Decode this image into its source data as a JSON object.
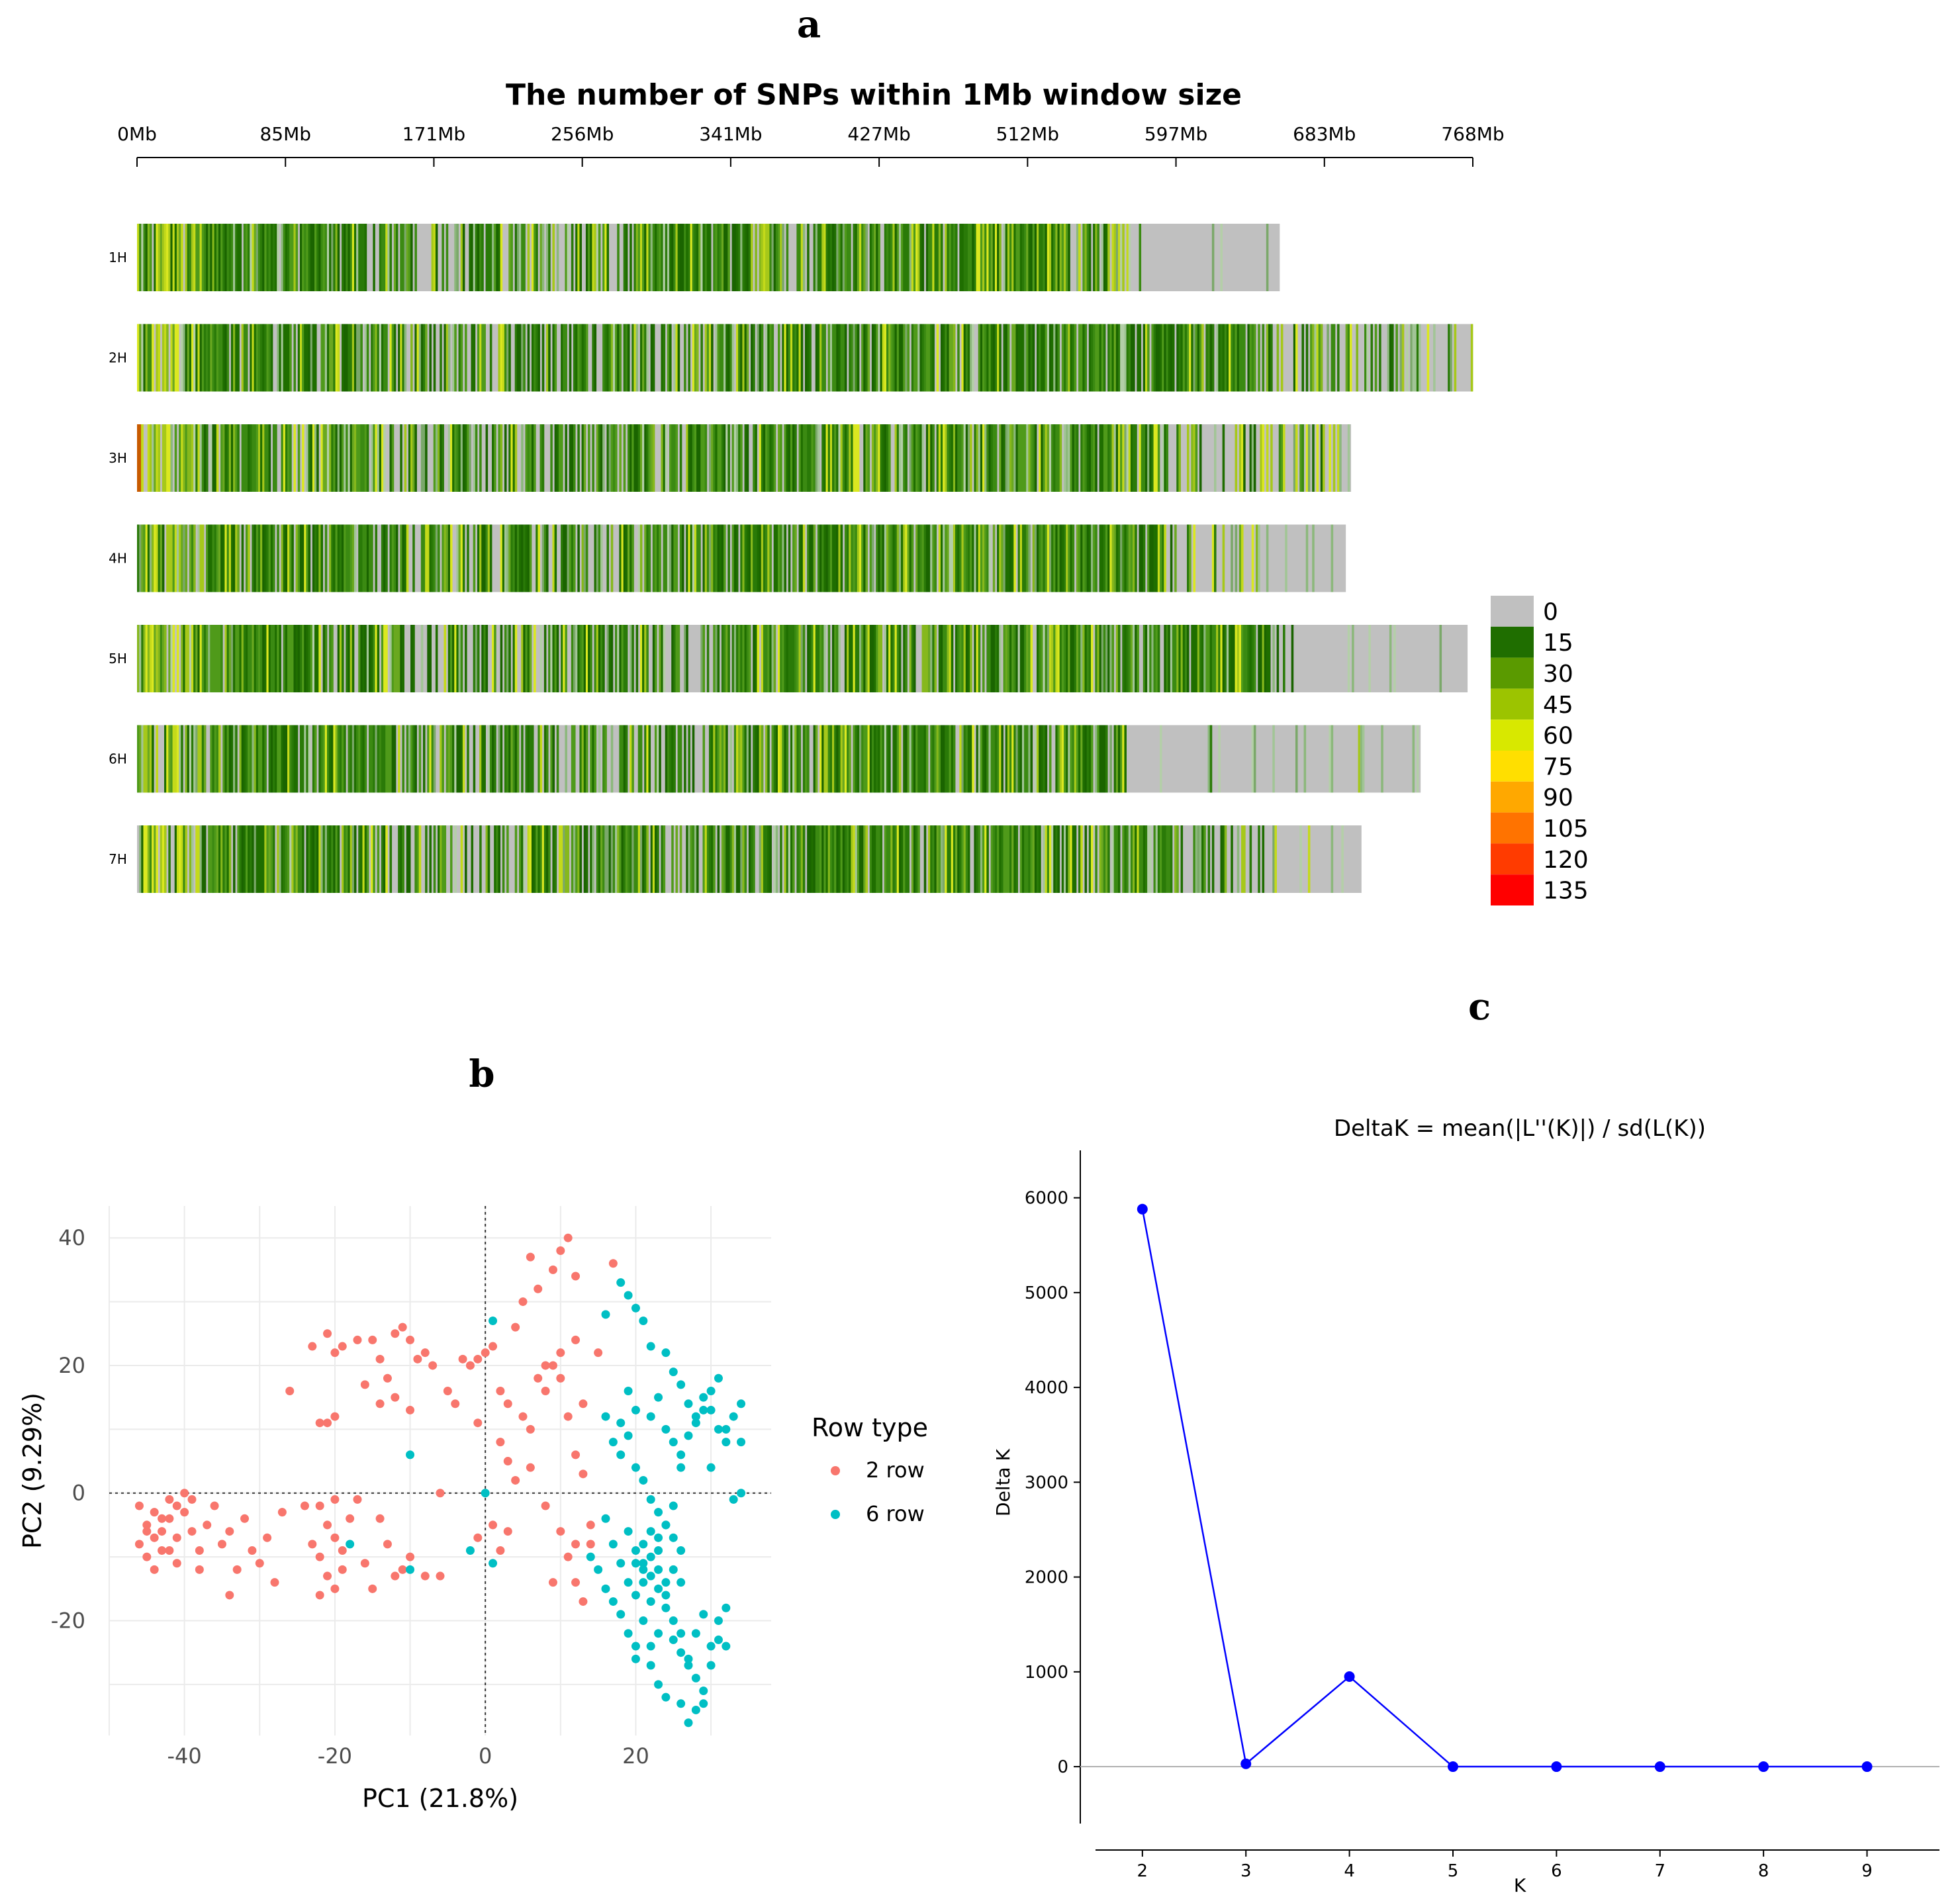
{
  "chart_data": [
    {
      "panel": "a",
      "type": "heatmap",
      "title": "The number of SNPs within 1Mb window size",
      "x_ticks": [
        "0Mb",
        "85Mb",
        "171Mb",
        "256Mb",
        "341Mb",
        "427Mb",
        "512Mb",
        "597Mb",
        "683Mb",
        "768Mb"
      ],
      "x_range": [
        0,
        768
      ],
      "chromosomes": [
        {
          "name": "1H",
          "length": 657
        },
        {
          "name": "2H",
          "length": 768
        },
        {
          "name": "3H",
          "length": 698
        },
        {
          "name": "4H",
          "length": 695
        },
        {
          "name": "5H",
          "length": 765
        },
        {
          "name": "6H",
          "length": 738
        },
        {
          "name": "7H",
          "length": 704
        }
      ],
      "legend": {
        "values": [
          0,
          15,
          30,
          45,
          60,
          75,
          90,
          105,
          120,
          135
        ],
        "labels": [
          "0",
          "15",
          "30",
          "45",
          "60",
          "75",
          "90",
          "105",
          "120",
          "135"
        ],
        "colors": [
          "#c0c0c0",
          "#1f6e00",
          "#5a9a00",
          "#9cc400",
          "#d8e800",
          "#ffdf00",
          "#ffa800",
          "#ff7300",
          "#ff3b00",
          "#ff0000"
        ]
      }
    },
    {
      "panel": "b",
      "type": "scatter",
      "xlabel": "PC1 (21.8%)",
      "ylabel": "PC2 (9.29%)",
      "xlim": [
        -50,
        38
      ],
      "ylim": [
        -38,
        45
      ],
      "x_ticks": [
        -40,
        -20,
        0,
        20
      ],
      "y_ticks": [
        40,
        20,
        0,
        -20
      ],
      "x_tick_labels": [
        "-40",
        "-20",
        "0",
        "20"
      ],
      "y_tick_labels": [
        "40",
        "20",
        "0",
        "-20"
      ],
      "legend_title": "Row type",
      "series": [
        {
          "name": "2 row",
          "color": "#f8766d",
          "points": [
            [
              -46,
              -8
            ],
            [
              -45,
              -5
            ],
            [
              -44,
              -3
            ],
            [
              -43,
              -6
            ],
            [
              -42,
              -4
            ],
            [
              -41,
              -7
            ],
            [
              -45,
              -10
            ],
            [
              -44,
              -12
            ],
            [
              -43,
              -9
            ],
            [
              -46,
              -2
            ],
            [
              -42,
              -1
            ],
            [
              -40,
              -3
            ],
            [
              -39,
              -6
            ],
            [
              -41,
              -11
            ],
            [
              -38,
              -9
            ],
            [
              -37,
              -5
            ],
            [
              -36,
              -2
            ],
            [
              -35,
              -8
            ],
            [
              -34,
              -6
            ],
            [
              -33,
              -12
            ],
            [
              -32,
              -4
            ],
            [
              -31,
              -9
            ],
            [
              -30,
              -11
            ],
            [
              -29,
              -7
            ],
            [
              -28,
              -14
            ],
            [
              -34,
              -16
            ],
            [
              -27,
              -3
            ],
            [
              -44,
              -7
            ],
            [
              -45,
              -6
            ],
            [
              -43,
              -4
            ],
            [
              -40,
              0
            ],
            [
              -39,
              -1
            ],
            [
              -41,
              -2
            ],
            [
              -42,
              -9
            ],
            [
              -38,
              -12
            ],
            [
              -22,
              -2
            ],
            [
              -21,
              -5
            ],
            [
              -20,
              -7
            ],
            [
              -22,
              -10
            ],
            [
              -21,
              -13
            ],
            [
              -20,
              -15
            ],
            [
              -19,
              -9
            ],
            [
              -18,
              -4
            ],
            [
              -22,
              -16
            ],
            [
              -20,
              -1
            ],
            [
              -19,
              -12
            ],
            [
              -16,
              -11
            ],
            [
              -15,
              -15
            ],
            [
              -13,
              -8
            ],
            [
              -12,
              -13
            ],
            [
              -11,
              -12
            ],
            [
              -10,
              -10
            ],
            [
              -8,
              -13
            ],
            [
              -6,
              -13
            ],
            [
              -24,
              -2
            ],
            [
              -23,
              -8
            ],
            [
              -17,
              -1
            ],
            [
              -14,
              -4
            ],
            [
              -6,
              0
            ],
            [
              -23,
              23
            ],
            [
              -21,
              25
            ],
            [
              -20,
              22
            ],
            [
              -19,
              23
            ],
            [
              -17,
              24
            ],
            [
              -15,
              24
            ],
            [
              -14,
              21
            ],
            [
              -13,
              18
            ],
            [
              -12,
              25
            ],
            [
              -11,
              26
            ],
            [
              -10,
              24
            ],
            [
              -9,
              21
            ],
            [
              -8,
              22
            ],
            [
              -7,
              20
            ],
            [
              -5,
              16
            ],
            [
              -4,
              14
            ],
            [
              -3,
              21
            ],
            [
              -2,
              20
            ],
            [
              -1,
              21
            ],
            [
              0,
              22
            ],
            [
              1,
              23
            ],
            [
              -12,
              15
            ],
            [
              -10,
              13
            ],
            [
              -21,
              11
            ],
            [
              -20,
              12
            ],
            [
              -26,
              16
            ],
            [
              -22,
              11
            ],
            [
              -16,
              17
            ],
            [
              -14,
              14
            ],
            [
              2,
              16
            ],
            [
              3,
              14
            ],
            [
              4,
              26
            ],
            [
              5,
              12
            ],
            [
              6,
              10
            ],
            [
              7,
              18
            ],
            [
              8,
              16
            ],
            [
              9,
              20
            ],
            [
              10,
              18
            ],
            [
              11,
              12
            ],
            [
              12,
              24
            ],
            [
              13,
              14
            ],
            [
              9,
              35
            ],
            [
              10,
              38
            ],
            [
              11,
              40
            ],
            [
              12,
              34
            ],
            [
              7,
              32
            ],
            [
              6,
              37
            ],
            [
              5,
              30
            ],
            [
              15,
              22
            ],
            [
              17,
              36
            ],
            [
              3,
              5
            ],
            [
              4,
              2
            ],
            [
              6,
              4
            ],
            [
              8,
              -2
            ],
            [
              10,
              -6
            ],
            [
              12,
              -8
            ],
            [
              14,
              -5
            ],
            [
              9,
              -14
            ],
            [
              12,
              -14
            ],
            [
              1,
              -5
            ],
            [
              2,
              -9
            ],
            [
              3,
              -6
            ],
            [
              -1,
              -7
            ],
            [
              11,
              -10
            ],
            [
              13,
              3
            ],
            [
              14,
              -8
            ],
            [
              8,
              20
            ],
            [
              10,
              22
            ],
            [
              12,
              6
            ],
            [
              2,
              8
            ],
            [
              -1,
              11
            ],
            [
              13,
              -17
            ]
          ]
        },
        {
          "name": "6 row",
          "color": "#00bfc4",
          "points": [
            [
              16,
              28
            ],
            [
              18,
              33
            ],
            [
              19,
              31
            ],
            [
              20,
              29
            ],
            [
              21,
              27
            ],
            [
              22,
              23
            ],
            [
              24,
              22
            ],
            [
              25,
              19
            ],
            [
              26,
              17
            ],
            [
              27,
              14
            ],
            [
              28,
              12
            ],
            [
              29,
              15
            ],
            [
              30,
              13
            ],
            [
              31,
              10
            ],
            [
              32,
              8
            ],
            [
              33,
              12
            ],
            [
              34,
              14
            ],
            [
              16,
              12
            ],
            [
              17,
              8
            ],
            [
              18,
              6
            ],
            [
              19,
              9
            ],
            [
              20,
              4
            ],
            [
              21,
              2
            ],
            [
              22,
              -1
            ],
            [
              23,
              -3
            ],
            [
              24,
              -5
            ],
            [
              25,
              -2
            ],
            [
              26,
              6
            ],
            [
              27,
              9
            ],
            [
              28,
              11
            ],
            [
              29,
              13
            ],
            [
              30,
              16
            ],
            [
              31,
              18
            ],
            [
              32,
              10
            ],
            [
              33,
              -1
            ],
            [
              17,
              -8
            ],
            [
              18,
              -11
            ],
            [
              19,
              -14
            ],
            [
              20,
              -16
            ],
            [
              21,
              -12
            ],
            [
              22,
              -10
            ],
            [
              23,
              -15
            ],
            [
              24,
              -18
            ],
            [
              25,
              -20
            ],
            [
              26,
              -22
            ],
            [
              27,
              -26
            ],
            [
              28,
              -29
            ],
            [
              29,
              -31
            ],
            [
              30,
              -24
            ],
            [
              31,
              -20
            ],
            [
              32,
              -18
            ],
            [
              19,
              -6
            ],
            [
              20,
              -9
            ],
            [
              21,
              -11
            ],
            [
              22,
              -13
            ],
            [
              23,
              -7
            ],
            [
              24,
              -5
            ],
            [
              25,
              -12
            ],
            [
              26,
              -14
            ],
            [
              27,
              -27
            ],
            [
              28,
              -34
            ],
            [
              29,
              -33
            ],
            [
              27,
              -36
            ],
            [
              26,
              -33
            ],
            [
              22,
              -27
            ],
            [
              23,
              -30
            ],
            [
              24,
              -32
            ],
            [
              20,
              -26
            ],
            [
              19,
              -22
            ],
            [
              18,
              -19
            ],
            [
              17,
              -17
            ],
            [
              16,
              -15
            ],
            [
              15,
              -12
            ],
            [
              14,
              -10
            ],
            [
              16,
              -4
            ],
            [
              22,
              12
            ],
            [
              23,
              15
            ],
            [
              24,
              10
            ],
            [
              25,
              8
            ],
            [
              26,
              4
            ],
            [
              20,
              13
            ],
            [
              19,
              16
            ],
            [
              18,
              11
            ],
            [
              30,
              -27
            ],
            [
              31,
              -23
            ],
            [
              32,
              -24
            ],
            [
              29,
              -19
            ],
            [
              28,
              -22
            ],
            [
              21,
              -20
            ],
            [
              20,
              -24
            ],
            [
              22,
              -24
            ],
            [
              25,
              -23
            ],
            [
              26,
              -25
            ],
            [
              23,
              -22
            ],
            [
              24,
              -16
            ],
            [
              21,
              -8
            ],
            [
              22,
              -6
            ],
            [
              23,
              -9
            ],
            [
              25,
              -7
            ],
            [
              26,
              -9
            ],
            [
              1,
              27
            ],
            [
              -10,
              6
            ],
            [
              0,
              0
            ],
            [
              -18,
              -8
            ],
            [
              -10,
              -12
            ],
            [
              -2,
              -9
            ],
            [
              1,
              -11
            ],
            [
              34,
              0
            ],
            [
              30,
              4
            ],
            [
              34,
              8
            ],
            [
              21,
              -14
            ],
            [
              22,
              -17
            ],
            [
              24,
              -14
            ],
            [
              20,
              -11
            ],
            [
              23,
              -12
            ]
          ]
        }
      ]
    },
    {
      "panel": "c",
      "type": "line",
      "title": "DeltaK = mean(|L''(K)|) / sd(L(K))",
      "xlabel": "K",
      "ylabel": "Delta K",
      "x": [
        2,
        3,
        4,
        5,
        6,
        7,
        8,
        9
      ],
      "series": [
        {
          "name": "Delta K",
          "values": [
            5880,
            30,
            950,
            0,
            0,
            0,
            0,
            0
          ],
          "color": "#0000ff"
        }
      ],
      "x_ticks": [
        2,
        3,
        4,
        5,
        6,
        7,
        8,
        9
      ],
      "y_ticks": [
        0,
        1000,
        2000,
        3000,
        4000,
        5000,
        6000
      ],
      "x_tick_labels": [
        "2",
        "3",
        "4",
        "5",
        "6",
        "7",
        "8",
        "9"
      ],
      "y_tick_labels": [
        "0",
        "1000",
        "2000",
        "3000",
        "4000",
        "5000",
        "6000"
      ],
      "xlim": [
        1.4,
        9.7
      ],
      "ylim": [
        -600,
        6500
      ]
    }
  ],
  "panels": {
    "a_label": "a",
    "b_label": "b",
    "c_label": "c"
  }
}
